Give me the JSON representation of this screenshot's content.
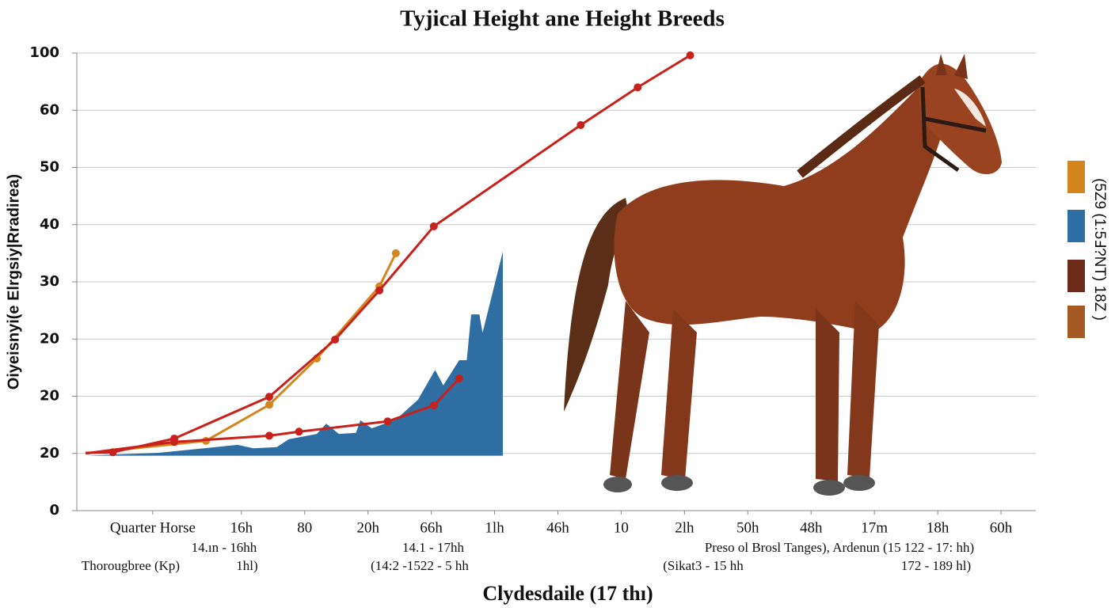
{
  "chart_data": {
    "type": "line",
    "title": "Tyjical Height ane Height Breeds",
    "y_label": "Oiyeisnyi(e Elrgsiy|Rradirea)",
    "x_label": "Clydesdaile  (17 thı)",
    "ylim": [
      0,
      80
    ],
    "yticks": [
      0,
      {
        "value": 10,
        "label": "20"
      },
      {
        "value": 20,
        "label": "20"
      },
      {
        "value": 30,
        "label": "20"
      },
      {
        "value": 40,
        "label": "30"
      },
      {
        "value": 50,
        "label": "40"
      },
      {
        "value": 60,
        "label": "50"
      },
      {
        "value": 70,
        "label": "60"
      },
      {
        "value": 80,
        "label": "100"
      }
    ],
    "xlim": [
      -0.6,
      14.55
    ],
    "xticks": [
      {
        "value": 0.6,
        "label": "Quarter Horse"
      },
      {
        "value": 2,
        "label": "16h"
      },
      {
        "value": 3,
        "label": "80"
      },
      {
        "value": 4,
        "label": "20h"
      },
      {
        "value": 5,
        "label": "66h"
      },
      {
        "value": 6,
        "label": "1lh"
      },
      {
        "value": 7,
        "label": "46h"
      },
      {
        "value": 8,
        "label": "10"
      },
      {
        "value": 9,
        "label": "2lh"
      },
      {
        "value": 10,
        "label": "50h"
      },
      {
        "value": 11,
        "label": "48h"
      },
      {
        "value": 12,
        "label": "17m"
      },
      {
        "value": 13,
        "label": "18h"
      },
      {
        "value": 14,
        "label": "60h"
      }
    ],
    "grid": true,
    "series": [
      {
        "kind": "area",
        "color": "#2f6ea3",
        "x": [
          -0.46,
          0.69,
          1.94,
          2.19,
          2.56,
          2.75,
          3.19,
          3.34,
          3.54,
          3.81,
          3.88,
          4.06,
          4.44,
          4.79,
          5.06,
          5.19,
          5.44,
          5.56,
          5.63,
          5.76,
          5.81,
          6.13,
          6.13
        ],
        "values": [
          9.6,
          10.1,
          11.5,
          10.9,
          11.1,
          12.5,
          13.4,
          15.2,
          13.4,
          13.6,
          15.8,
          14.4,
          15.9,
          19.4,
          24.6,
          21.9,
          26.3,
          26.3,
          34.3,
          34.3,
          31.1,
          45.3,
          9.6
        ]
      },
      {
        "kind": "line",
        "color": "#d4861e",
        "x": [
          -0.46,
          1.44,
          2.44,
          3.19,
          4.18,
          4.44
        ],
        "values": [
          10,
          12.2,
          18.5,
          26.6,
          39.2,
          45
        ]
      },
      {
        "kind": "line",
        "color": "#c8201a",
        "x": [
          -0.46,
          -0.03,
          0.94,
          2.44,
          3.48,
          4.18,
          5.04,
          7.36,
          8.26,
          9.09
        ],
        "values": [
          10.1,
          10.2,
          12.6,
          19.9,
          29.9,
          38.5,
          49.7,
          67.4,
          74.0,
          79.6
        ]
      },
      {
        "kind": "line",
        "color": "#c8201a",
        "x": [
          -0.46,
          0.94,
          2.44,
          2.91,
          4.31,
          5.04,
          5.44
        ],
        "values": [
          10,
          12,
          13.1,
          13.8,
          15.6,
          18.4,
          23.1
        ]
      }
    ],
    "annotations": [
      "14.ın - 16hh",
      "14.1 - 17hh",
      "Preso ol Brosl Tanges), Ardenun (15 122 - 17: hh)",
      "Thorougbree (Kp)",
      "1hl)",
      "(14:2 -1522 - 5 hh",
      "(Sikat3 - 15 hh",
      "172 - 189 hl)"
    ],
    "legend": {
      "colors": [
        "#d4861e",
        "#2f6ea3",
        "#6b2a1a",
        "#a55a24"
      ],
      "text": "(5Z9 (1:5Ⅎ?NT) 18Z )"
    }
  }
}
